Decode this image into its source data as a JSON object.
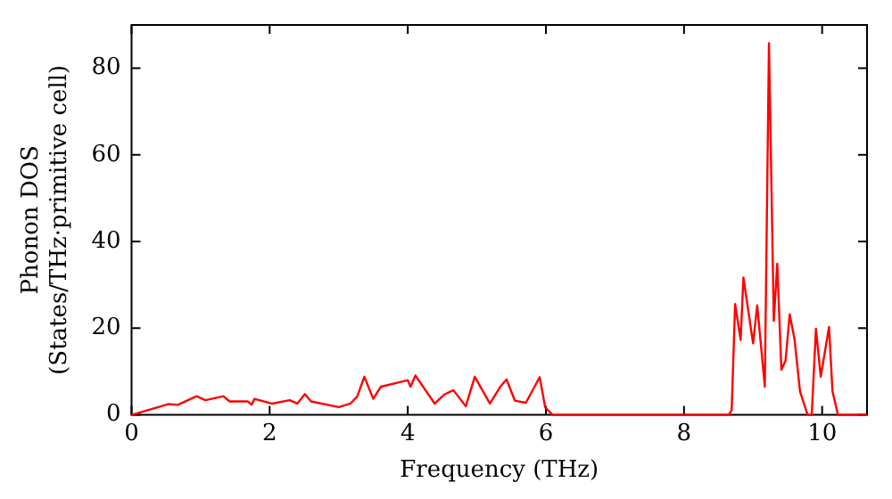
{
  "chart_data": {
    "type": "line",
    "xlabel": "Frequency (THz)",
    "ylabel": "Phonon DOS\n(States/THz·primitive cell)",
    "xlim": [
      0,
      10.65
    ],
    "ylim": [
      0,
      90
    ],
    "xticks": [
      0,
      2,
      4,
      6,
      8,
      10
    ],
    "yticks": [
      0,
      20,
      40,
      60,
      80
    ],
    "grid": false,
    "legend": false,
    "marker": "none",
    "line_style": "solid",
    "series": [
      {
        "color": "#ff0000",
        "x": [
          0,
          0.54,
          0.67,
          0.94,
          1.07,
          1.33,
          1.42,
          1.68,
          1.74,
          1.78,
          2.03,
          2.29,
          2.4,
          2.51,
          2.6,
          3.0,
          3.17,
          3.27,
          3.37,
          3.5,
          3.61,
          3.87,
          4.0,
          4.04,
          4.11,
          4.39,
          4.53,
          4.66,
          4.84,
          4.97,
          5.19,
          5.34,
          5.43,
          5.55,
          5.71,
          5.91,
          5.99,
          6.1,
          8.65,
          8.69,
          8.74,
          8.82,
          8.86,
          9.0,
          9.06,
          9.17,
          9.23,
          9.3,
          9.35,
          9.41,
          9.47,
          9.53,
          9.6,
          9.68,
          9.79,
          9.85,
          9.91,
          9.98,
          10.1,
          10.15,
          10.23,
          10.65
        ],
        "values": [
          0,
          2.5,
          2.3,
          4.3,
          3.4,
          4.3,
          3.1,
          3.1,
          2.4,
          3.7,
          2.6,
          3.4,
          2.6,
          4.8,
          3.1,
          1.8,
          2.6,
          4.3,
          8.8,
          3.7,
          6.5,
          7.5,
          8.0,
          6.5,
          9.1,
          2.6,
          4.7,
          5.7,
          2.0,
          8.8,
          2.6,
          6.5,
          8.2,
          3.3,
          2.8,
          8.7,
          1.7,
          0,
          0,
          1.1,
          25.6,
          17.3,
          31.7,
          16.5,
          25.3,
          6.5,
          85.8,
          21.7,
          34.9,
          10.4,
          12.5,
          23.2,
          17.5,
          5.4,
          0,
          0,
          19.9,
          8.8,
          20.3,
          5.4,
          0,
          0
        ]
      }
    ]
  }
}
